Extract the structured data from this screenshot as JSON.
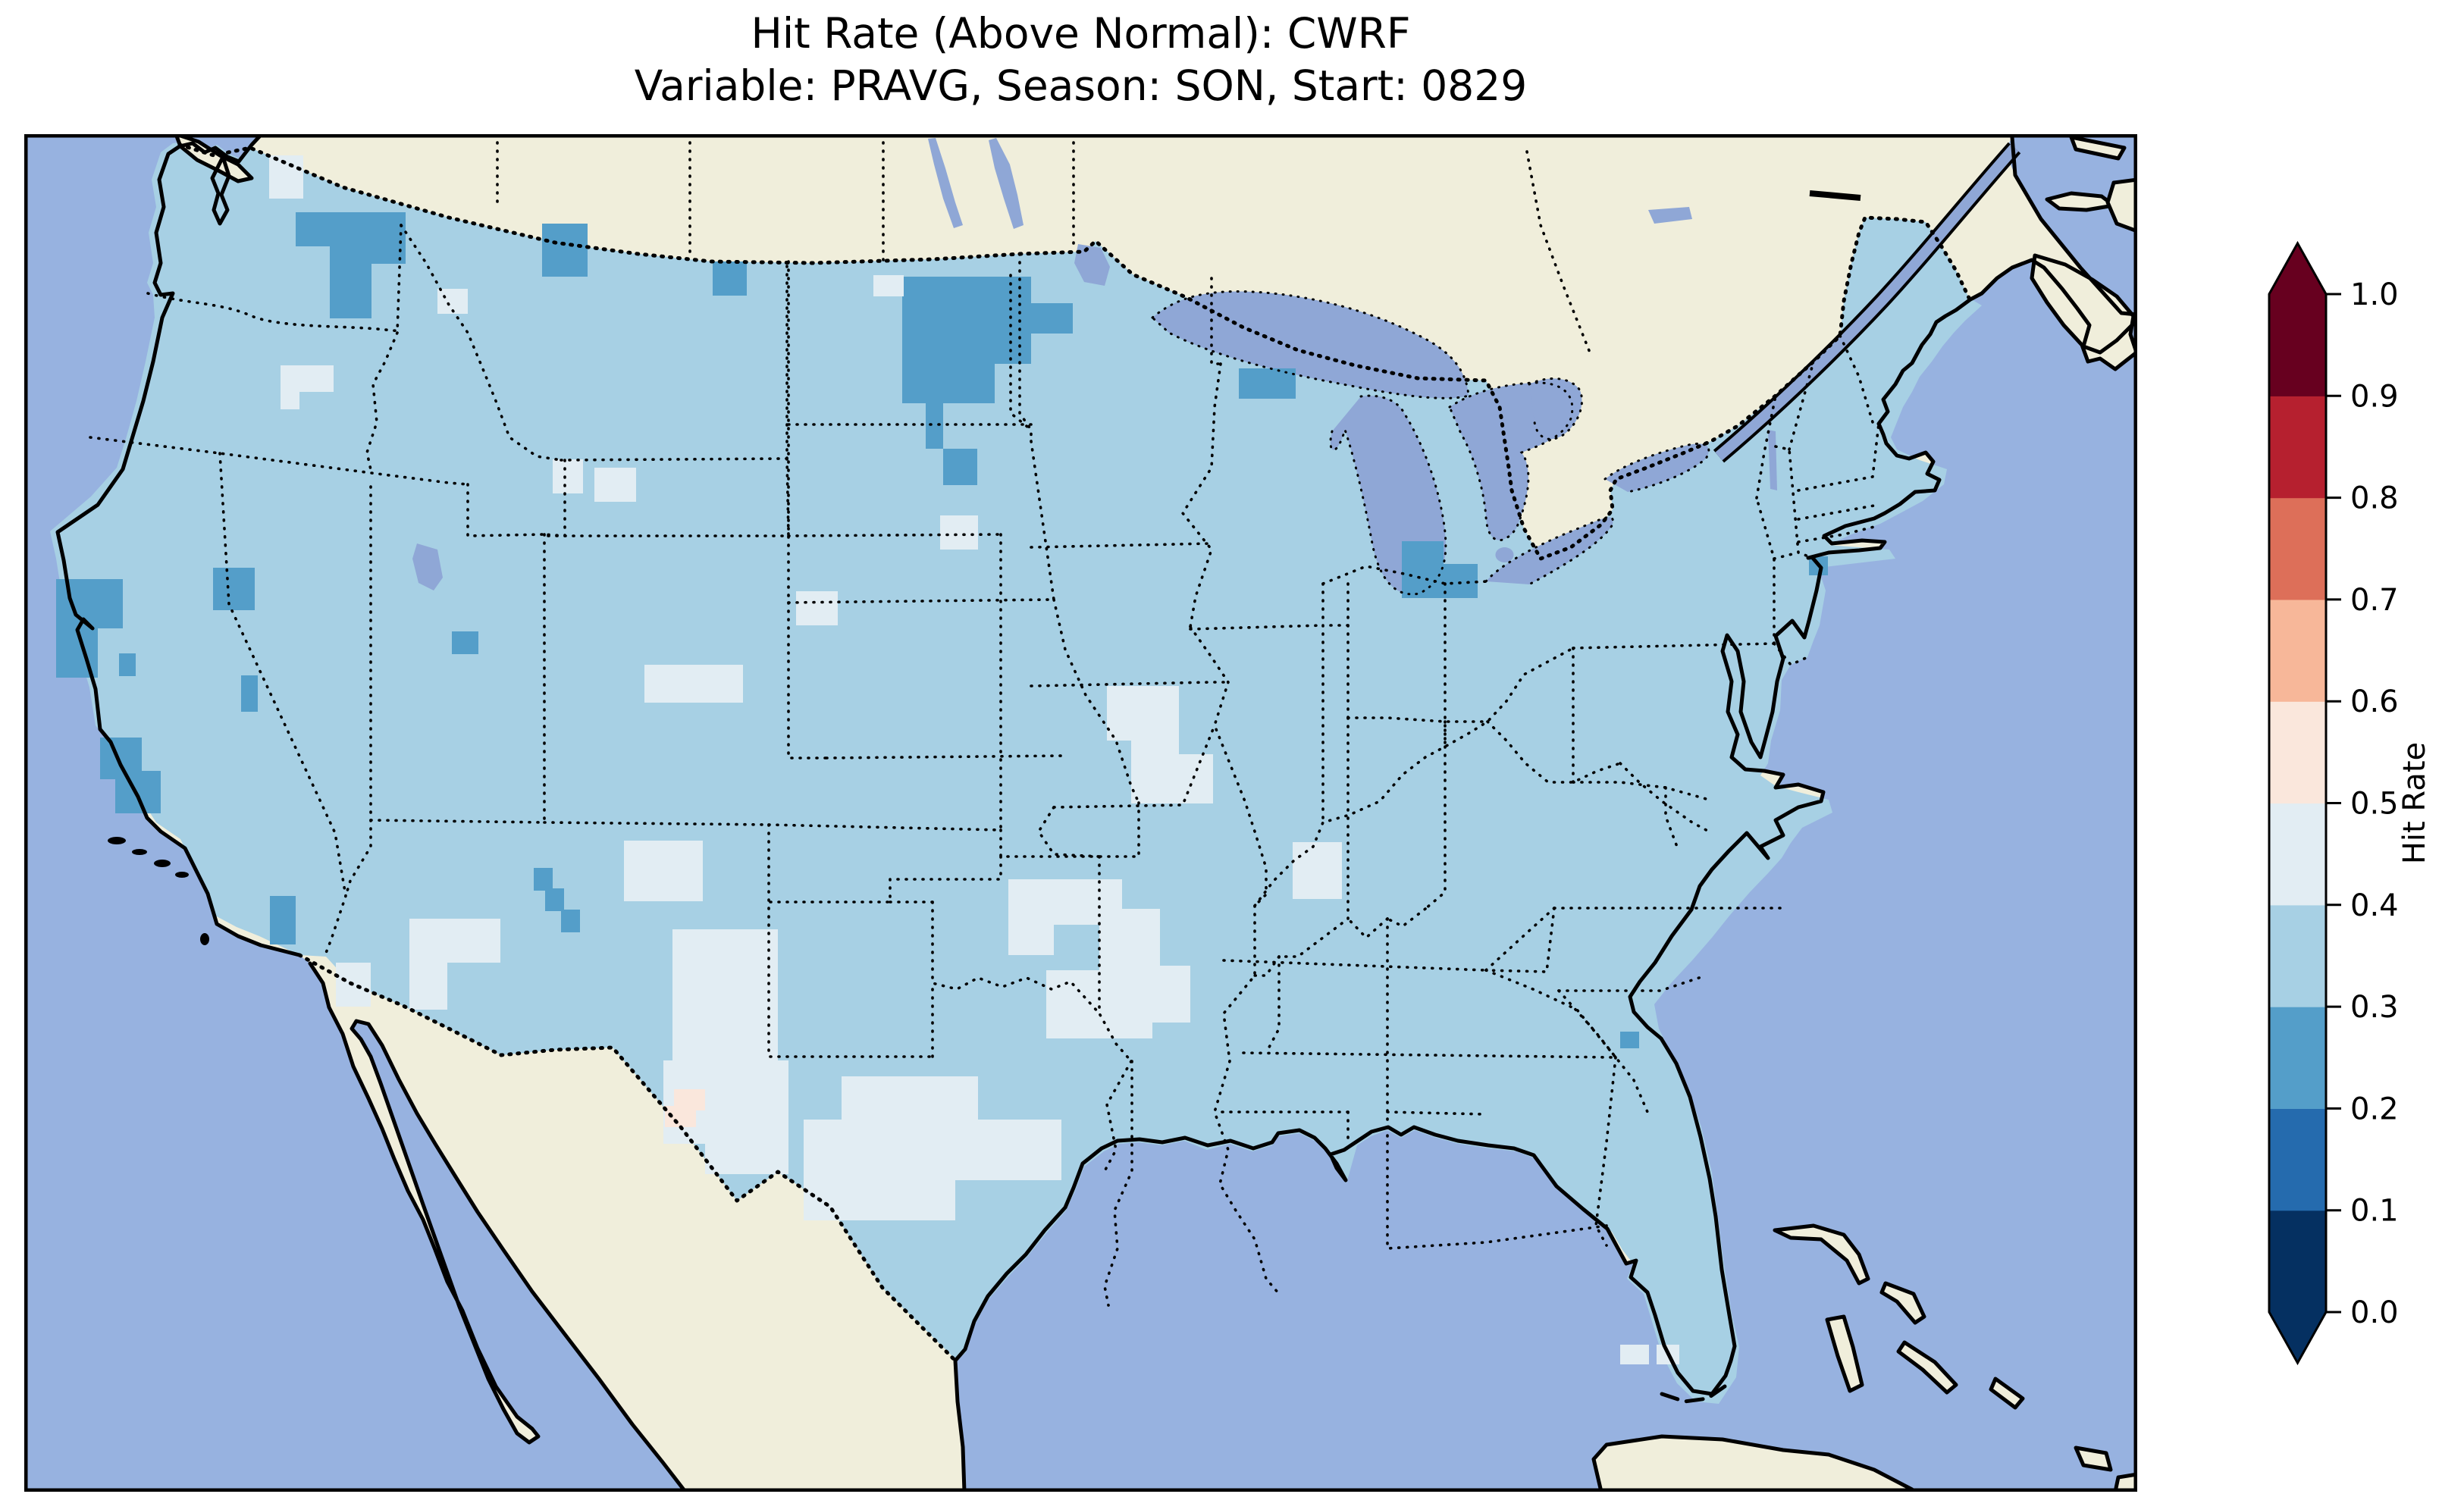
{
  "title": {
    "line1": "Hit Rate (Above Normal): CWRF",
    "line2": "Variable: PRAVG, Season: SON, Start: 0829"
  },
  "colorbar": {
    "label": "Hit Rate",
    "ticks": [
      "1.0",
      "0.9",
      "0.8",
      "0.7",
      "0.6",
      "0.5",
      "0.4",
      "0.3",
      "0.2",
      "0.1",
      "0.0"
    ],
    "band_colors_bottom_to_top": [
      "#053061",
      "#256bae",
      "#549ec9",
      "#a7d0e4",
      "#e2edf3",
      "#fae7dc",
      "#f7b799",
      "#dd6f59",
      "#b6202f",
      "#67001f"
    ],
    "under_color": "#053061",
    "over_color": "#67001f"
  },
  "map": {
    "colors": {
      "ocean": "#97b2e0",
      "land": "#f0eedb",
      "lake": "#8fa7d6",
      "data_base": "#a7d0e4",
      "coastline": "#000000"
    }
  },
  "chart_data": {
    "type": "heatmap",
    "subtype": "choropleth_map_conus_grid",
    "title": "Hit Rate (Above Normal): CWRF",
    "subtitle": "Variable: PRAVG, Season: SON, Start: 0829",
    "model": "CWRF",
    "metric": "Hit Rate (Above Normal)",
    "variable": "PRAVG",
    "season": "SON",
    "start": "0829",
    "colorbar_label": "Hit Rate",
    "colormap": "RdBu_r, 10 discrete bins with under/over arrows",
    "levels": [
      0.0,
      0.1,
      0.2,
      0.3,
      0.4,
      0.5,
      0.6,
      0.7,
      0.8,
      0.9,
      1.0
    ],
    "extent": "Contiguous United States",
    "regions": [
      {
        "region": "Most of CONUS (background)",
        "hit_rate": 0.35
      },
      {
        "region": "Washington Cascades",
        "hit_rate": 0.25
      },
      {
        "region": "Northern Idaho / NW Montana",
        "hit_rate": 0.25
      },
      {
        "region": "Eastern North Dakota / NW Minnesota (large patch)",
        "hit_rate": 0.25
      },
      {
        "region": "NE Wisconsin near Lake Superior",
        "hit_rate": 0.25
      },
      {
        "region": "West Michigan shoreline",
        "hit_rate": 0.25
      },
      {
        "region": "Northern & central California coast",
        "hit_rate": 0.25
      },
      {
        "region": "Scattered Nevada and Utah cells",
        "hit_rate": 0.25
      },
      {
        "region": "NW New Mexico cells",
        "hit_rate": 0.25
      },
      {
        "region": "New York City cell",
        "hit_rate": 0.25
      },
      {
        "region": "Georgia coast cell near Savannah",
        "hit_rate": 0.25
      },
      {
        "region": "New Mexico and far west Texas",
        "hit_rate": 0.45
      },
      {
        "region": "Central Texas / Oklahoma patches",
        "hit_rate": 0.45
      },
      {
        "region": "Missouri and Arkansas patches",
        "hit_rate": 0.45
      },
      {
        "region": "Kentucky-Tennessee border cells",
        "hit_rate": 0.45
      },
      {
        "region": "Southern Arizona",
        "hit_rate": 0.45
      },
      {
        "region": "Big Bend Texas single cell",
        "hit_rate": 0.55
      }
    ]
  }
}
